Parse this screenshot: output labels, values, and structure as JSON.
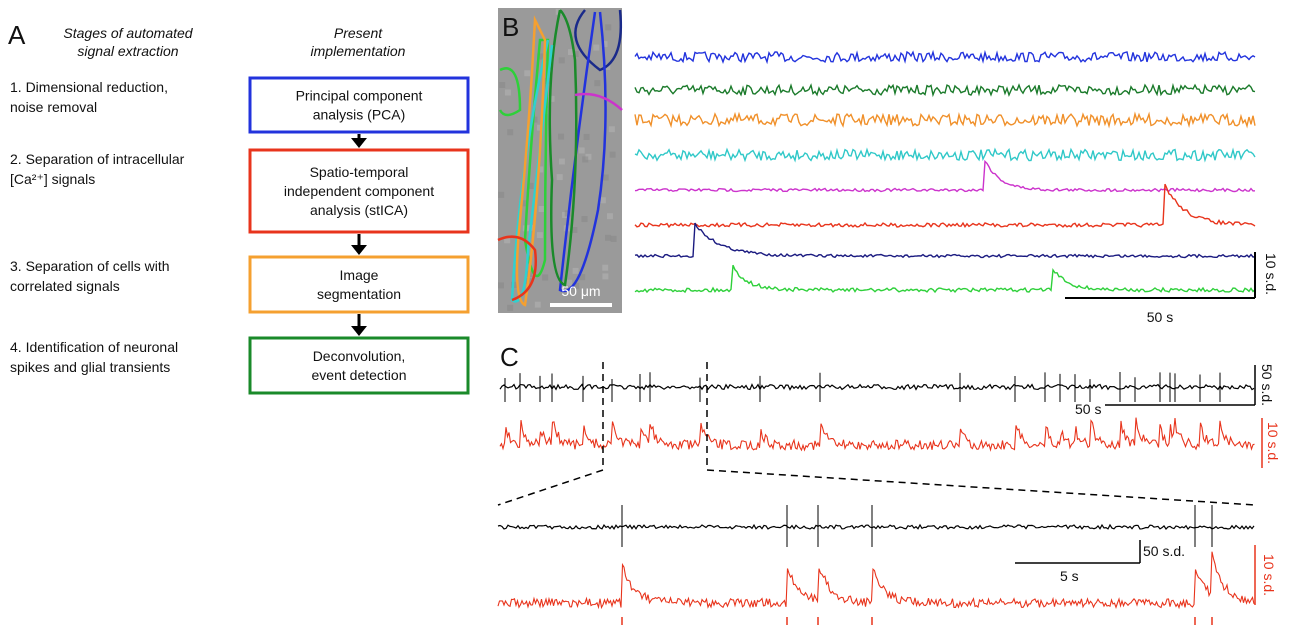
{
  "panel_a": {
    "label": "A",
    "stages_header": [
      "Stages of automated",
      "signal extraction"
    ],
    "implementation_header": [
      "Present",
      "implementation"
    ],
    "steps": [
      {
        "stage": [
          "1. Dimensional reduction,",
          "noise removal"
        ],
        "implementation": [
          "Principal component",
          "analysis (PCA)"
        ]
      },
      {
        "stage": [
          "2. Separation of intracellular",
          "[Ca²⁺] signals"
        ],
        "implementation": [
          "Spatio-temporal",
          "independent component",
          "analysis (stICA)"
        ]
      },
      {
        "stage": [
          "3. Separation of cells with",
          "correlated signals"
        ],
        "implementation": [
          "Image",
          "segmentation"
        ]
      },
      {
        "stage": [
          "4. Identification of neuronal",
          "spikes and glial transients"
        ],
        "implementation": [
          "Deconvolution,",
          "event detection"
        ]
      }
    ]
  },
  "panel_b": {
    "label": "B",
    "image_scale": "50 μm",
    "amplitude_scale": "10 s.d.",
    "time_scale": "50 s"
  },
  "panel_c": {
    "label": "C",
    "spike_scale": "50 s.d.",
    "time_scale": "50 s",
    "calcium_scale": "10 s.d.",
    "zoom_spike_scale": "50 s.d.",
    "zoom_time_scale": "5 s",
    "zoom_calcium_scale": "10 s.d."
  }
}
